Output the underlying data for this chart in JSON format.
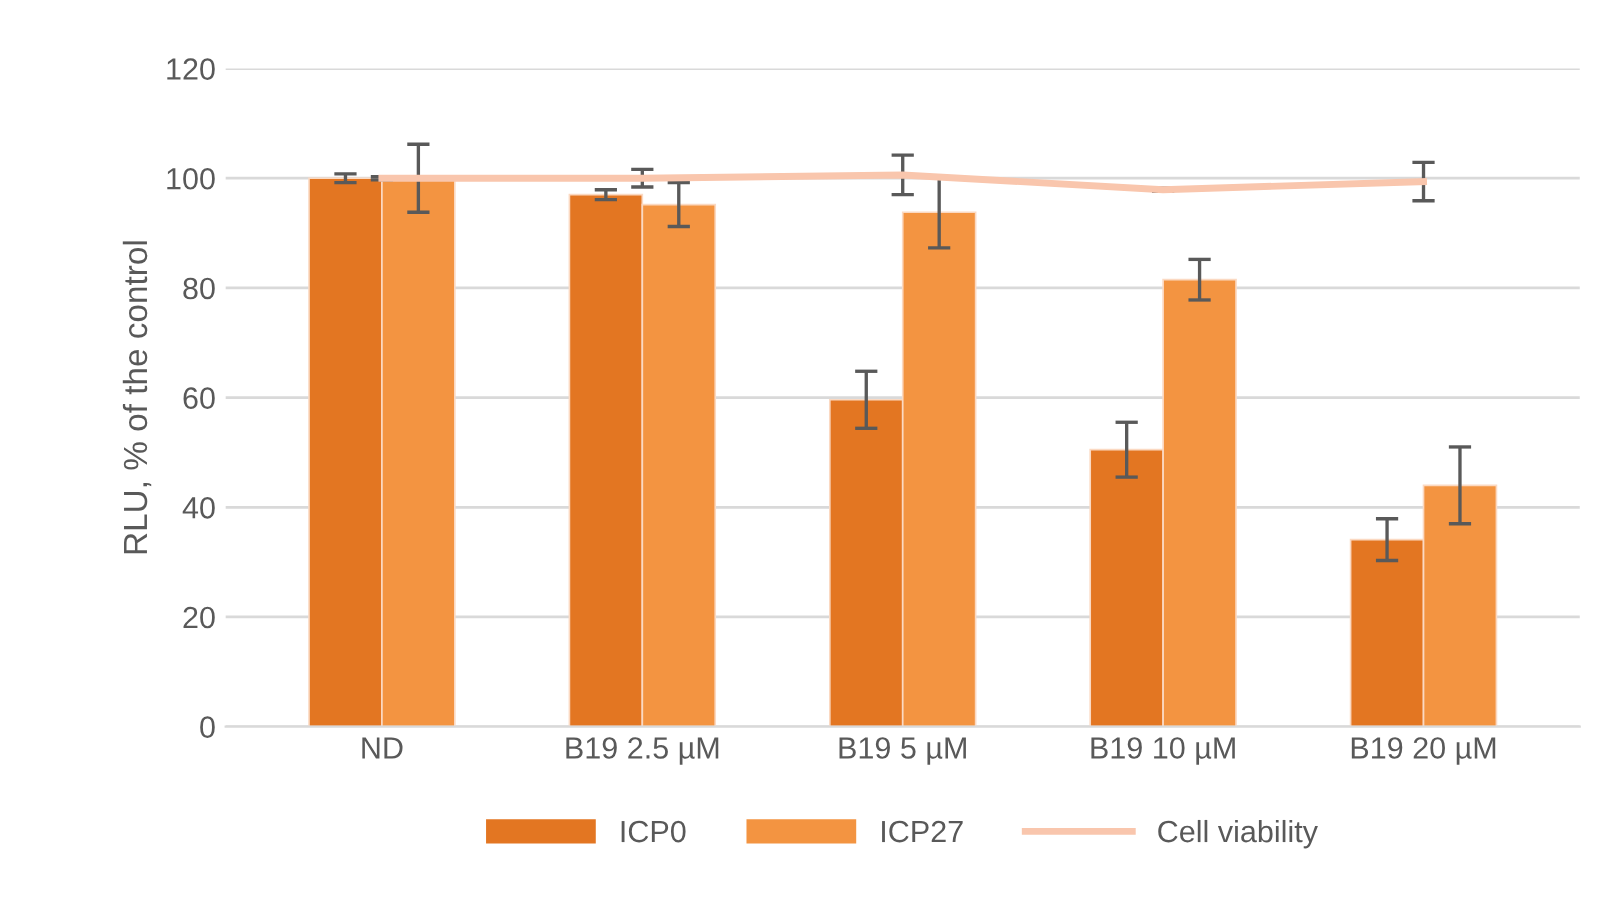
{
  "chart_data": {
    "type": "bar",
    "ylabel": "RLU, % of the control",
    "categories": [
      "ND",
      "B19 2.5 µM",
      "B19 5 µM",
      "B19 10 µM",
      "B19 20 µM"
    ],
    "series": [
      {
        "name": "ICP0",
        "color": "#e37622",
        "values": [
          100,
          97,
          59.6,
          50.5,
          34.1
        ],
        "errors": [
          0.8,
          0.9,
          5.2,
          5,
          3.8
        ]
      },
      {
        "name": "ICP27",
        "color": "#f39441",
        "values": [
          100,
          95.2,
          93.8,
          81.5,
          44
        ],
        "errors": [
          6.2,
          4,
          6.5,
          3.7,
          7
        ]
      },
      {
        "name": "Cell viability",
        "type": "line",
        "color": "#f9c6ad",
        "values": [
          100,
          100,
          100.6,
          97.9,
          99.4
        ],
        "errors": [
          0.3,
          1.6,
          3.6,
          0.3,
          3.5
        ]
      }
    ],
    "ylim": [
      0,
      120
    ],
    "yticks": [
      0,
      20,
      40,
      60,
      80,
      100,
      120
    ],
    "grid": "y",
    "legend": "bottom",
    "marker": "none"
  }
}
